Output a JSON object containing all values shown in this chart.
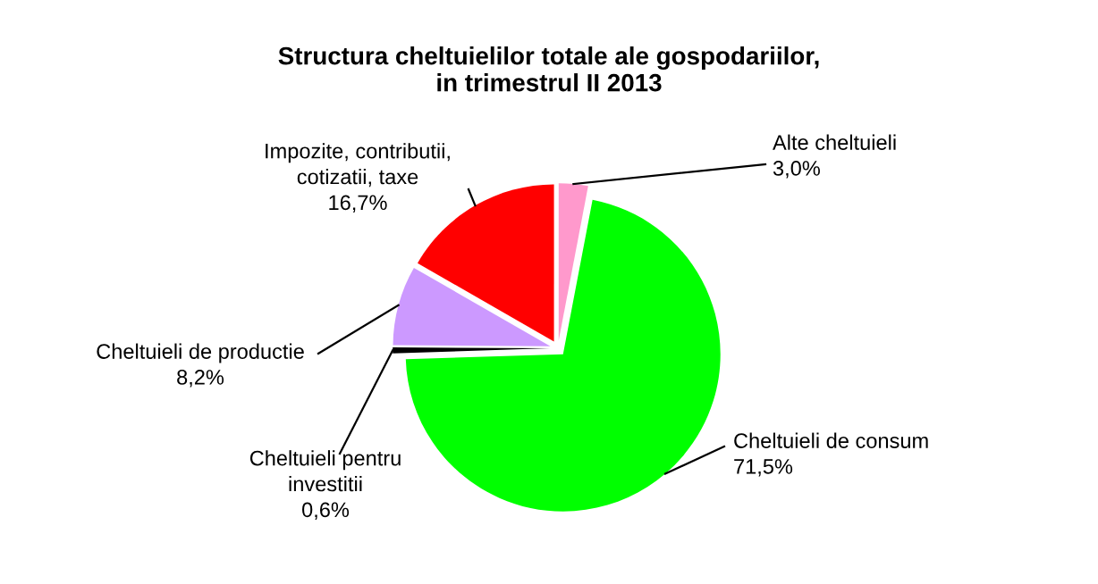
{
  "chart_data": {
    "type": "pie",
    "title": "Structura cheltuielilor totale ale gospodariilor,\nin trimestrul II 2013",
    "categories": [
      "Alte cheltuieli",
      "Cheltuieli de consum",
      "Cheltuieli pentru\ninvestitii",
      "Cheltuieli de productie",
      "Impozite, contributii,\ncotizatii, taxe"
    ],
    "values": [
      3.0,
      71.5,
      0.6,
      8.2,
      16.7
    ],
    "value_labels": [
      "3,0%",
      "71,5%",
      "0,6%",
      "8,2%",
      "16,7%"
    ],
    "colors": [
      "#ff99cc",
      "#00ff00",
      "#000000",
      "#cc99ff",
      "#ff0000"
    ]
  }
}
